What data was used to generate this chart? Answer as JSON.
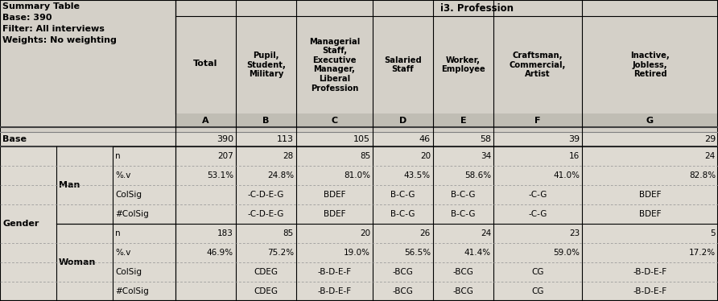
{
  "info_text": "Summary Table\nBase: 390\nFilter: All interviews\nWeights: No weighting",
  "total_label": "Total",
  "i3_label": "i3. Profession",
  "col_letters": [
    "A",
    "B",
    "C",
    "D",
    "E",
    "F",
    "G"
  ],
  "col_subheaders": [
    "Pupil,\nStudent,\nMilitary",
    "Managerial\nStaff,\nExecutive\nManager,\nLiberal\nProfession",
    "Salaried\nStaff",
    "Worker,\nEmployee",
    "Craftsman,\nCommercial,\nArtist",
    "Inactive,\nJobless,\nRetired"
  ],
  "base_values": [
    "390",
    "113",
    "105",
    "46",
    "58",
    "39",
    "29"
  ],
  "man_n": [
    "207",
    "28",
    "85",
    "20",
    "34",
    "16",
    "24"
  ],
  "man_pv": [
    "53.1%",
    "24.8%",
    "81.0%",
    "43.5%",
    "58.6%",
    "41.0%",
    "82.8%"
  ],
  "man_col": [
    "",
    "-C-D-E-G",
    "BDEF",
    "B-C-G",
    "B-C-G",
    "-C-G",
    "BDEF"
  ],
  "man_hcol": [
    "",
    "-C-D-E-G",
    "BDEF",
    "B-C-G",
    "B-C-G",
    "-C-G",
    "BDEF"
  ],
  "woman_n": [
    "183",
    "85",
    "20",
    "26",
    "24",
    "23",
    "5"
  ],
  "woman_pv": [
    "46.9%",
    "75.2%",
    "19.0%",
    "56.5%",
    "41.4%",
    "59.0%",
    "17.2%"
  ],
  "woman_col": [
    "",
    "CDEG",
    "-B-D-E-F",
    "-BCG",
    "-BCG",
    "CG",
    "-B-D-E-F"
  ],
  "woman_hcol": [
    "",
    "CDEG",
    "-B-D-E-F",
    "-BCG",
    "-BCG",
    "CG",
    "-B-D-E-F"
  ],
  "bg_header": "#d4d0c8",
  "bg_data": "#dedad2",
  "bg_letter": "#c0bdb4",
  "border_solid": "#000000",
  "border_dark": "#808080",
  "border_dot": "#a0a0a0"
}
